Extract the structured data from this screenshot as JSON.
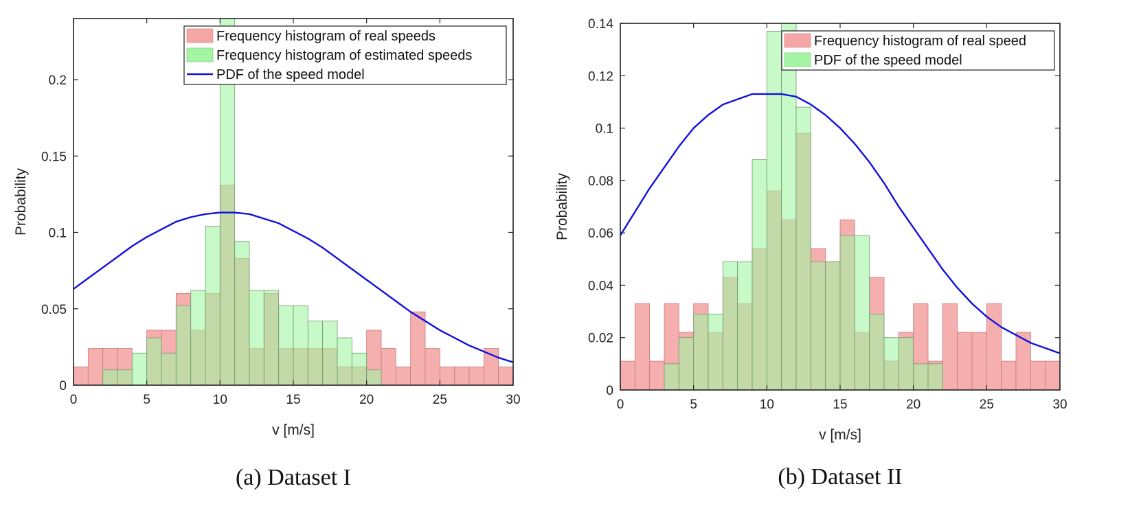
{
  "chart_data": [
    {
      "type": "bar",
      "caption": "(a) Dataset I",
      "xlabel": "v [m/s]",
      "ylabel": "Probability",
      "xlim": [
        0,
        30
      ],
      "ylim": [
        0,
        0.24
      ],
      "xticks": [
        0,
        5,
        10,
        15,
        20,
        25,
        30
      ],
      "yticks": [
        0,
        0.05,
        0.1,
        0.15,
        0.2
      ],
      "ytick_labels": [
        "0",
        "0.05",
        "0.1",
        "0.15",
        "0.2"
      ],
      "bin_width": 1,
      "bin_starts": [
        0,
        1,
        2,
        3,
        4,
        5,
        6,
        7,
        8,
        9,
        10,
        11,
        12,
        13,
        14,
        15,
        16,
        17,
        18,
        19,
        20,
        21,
        22,
        23,
        24,
        25,
        26,
        27,
        28,
        29
      ],
      "legend_position": "top-right",
      "series": [
        {
          "name": "Frequency histogram of real speeds",
          "kind": "histogram",
          "color": "#f4a6a6",
          "values": [
            0.012,
            0.024,
            0.024,
            0.024,
            0.0,
            0.036,
            0.036,
            0.06,
            0.036,
            0.06,
            0.131,
            0.083,
            0.024,
            0.06,
            0.024,
            0.024,
            0.024,
            0.024,
            0.012,
            0.012,
            0.036,
            0.024,
            0.012,
            0.048,
            0.024,
            0.012,
            0.012,
            0.012,
            0.024,
            0.012
          ]
        },
        {
          "name": "Frequency histogram of estimated speeds",
          "kind": "histogram",
          "color": "#a3f5a3",
          "values": [
            0.0,
            0.0,
            0.01,
            0.01,
            0.021,
            0.031,
            0.021,
            0.052,
            0.062,
            0.104,
            0.24,
            0.094,
            0.062,
            0.062,
            0.052,
            0.052,
            0.042,
            0.042,
            0.031,
            0.021,
            0.01,
            0.0,
            0.0,
            0.0,
            0.0,
            0.0,
            0.0,
            0.0,
            0.0,
            0.0
          ]
        },
        {
          "name": "PDF of the speed model",
          "kind": "line",
          "color": "#1010e0",
          "x": [
            0,
            1,
            2,
            3,
            4,
            5,
            6,
            7,
            8,
            9,
            10,
            10.6,
            11,
            12,
            13,
            14,
            15,
            16,
            17,
            18,
            19,
            20,
            21,
            22,
            23,
            24,
            25,
            26,
            27,
            28,
            29,
            30
          ],
          "values": [
            0.063,
            0.07,
            0.077,
            0.084,
            0.091,
            0.097,
            0.102,
            0.107,
            0.11,
            0.112,
            0.113,
            0.113,
            0.113,
            0.112,
            0.109,
            0.106,
            0.101,
            0.096,
            0.09,
            0.083,
            0.076,
            0.069,
            0.062,
            0.055,
            0.048,
            0.042,
            0.036,
            0.031,
            0.026,
            0.022,
            0.018,
            0.015
          ]
        }
      ]
    },
    {
      "type": "bar",
      "caption": "(b) Dataset II",
      "xlabel": "v [m/s]",
      "ylabel": "Probability",
      "xlim": [
        0,
        30
      ],
      "ylim": [
        0,
        0.14
      ],
      "xticks": [
        0,
        5,
        10,
        15,
        20,
        25,
        30
      ],
      "yticks": [
        0,
        0.02,
        0.04,
        0.06,
        0.08,
        0.1,
        0.12,
        0.14
      ],
      "ytick_labels": [
        "0",
        "0.02",
        "0.04",
        "0.06",
        "0.08",
        "0.1",
        "0.12",
        "0.14"
      ],
      "bin_width": 1,
      "bin_starts": [
        0,
        1,
        2,
        3,
        4,
        5,
        6,
        7,
        8,
        9,
        10,
        11,
        12,
        13,
        14,
        15,
        16,
        17,
        18,
        19,
        20,
        21,
        22,
        23,
        24,
        25,
        26,
        27,
        28,
        29
      ],
      "legend_position": "top-right",
      "series": [
        {
          "name": "Frequency histogram of real speed",
          "kind": "histogram",
          "color": "#f4a6a6",
          "values": [
            0.011,
            0.033,
            0.011,
            0.033,
            0.022,
            0.033,
            0.022,
            0.043,
            0.033,
            0.054,
            0.076,
            0.065,
            0.098,
            0.054,
            0.049,
            0.065,
            0.022,
            0.043,
            0.011,
            0.022,
            0.033,
            0.011,
            0.033,
            0.022,
            0.022,
            0.033,
            0.011,
            0.022,
            0.011,
            0.011
          ]
        },
        {
          "name": "",
          "kind": "histogram",
          "color": "#a3f5a3",
          "values": [
            0.0,
            0.0,
            0.0,
            0.01,
            0.02,
            0.029,
            0.029,
            0.049,
            0.049,
            0.088,
            0.137,
            0.15,
            0.108,
            0.049,
            0.049,
            0.059,
            0.059,
            0.029,
            0.02,
            0.02,
            0.01,
            0.01,
            0.0,
            0.0,
            0.0,
            0.0,
            0.0,
            0.0,
            0.0,
            0.0
          ]
        },
        {
          "name": "PDF of the speed model",
          "kind": "line",
          "color": "#1010e0",
          "x": [
            0,
            1,
            2,
            3,
            4,
            5,
            6,
            7,
            8,
            9,
            10,
            11,
            12,
            13,
            14,
            15,
            16,
            17,
            18,
            19,
            20,
            21,
            22,
            23,
            24,
            25,
            26,
            27,
            28,
            29,
            30
          ],
          "values": [
            0.059,
            0.068,
            0.077,
            0.085,
            0.093,
            0.1,
            0.105,
            0.109,
            0.111,
            0.113,
            0.113,
            0.113,
            0.112,
            0.109,
            0.105,
            0.1,
            0.094,
            0.087,
            0.079,
            0.07,
            0.062,
            0.054,
            0.046,
            0.039,
            0.033,
            0.028,
            0.024,
            0.021,
            0.018,
            0.016,
            0.014
          ]
        }
      ]
    }
  ]
}
